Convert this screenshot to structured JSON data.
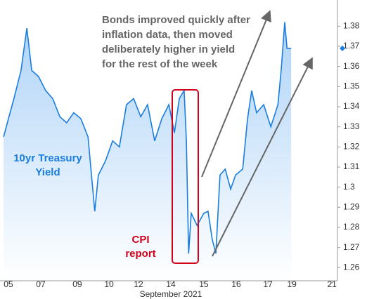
{
  "chart_data": {
    "type": "line",
    "annotation": [
      "Bonds improved quickly after",
      "inflation data, then moved",
      "deliberately higher in yield",
      "for the rest of the week"
    ],
    "series_label": [
      "10yr Treasury",
      "Yield"
    ],
    "event_label": [
      "CPI",
      "report"
    ],
    "xlabel": "September 2021",
    "x": [
      -0.15,
      0,
      0.17,
      0.39,
      0.57,
      0.72,
      0.93,
      1.15,
      1.37,
      1.59,
      1.8,
      2.02,
      2.24,
      2.46,
      2.67,
      2.78,
      3,
      3.22,
      3.43,
      3.65,
      3.87,
      4.09,
      4.3,
      4.52,
      4.74,
      4.96,
      5.13,
      5.28,
      5.43,
      5.5,
      5.57,
      5.65,
      5.83,
      6.04,
      6.17,
      6.3,
      6.41,
      6.54,
      6.7,
      6.87,
      7.02,
      7.24,
      7.39,
      7.52,
      7.67,
      7.89,
      8.11,
      8.33,
      8.43,
      8.54,
      8.61,
      8.74
    ],
    "series": [
      {
        "name": "10yr Treasury Yield",
        "color": "#1a7de0",
        "values": [
          1.325,
          1.334,
          1.344,
          1.358,
          1.379,
          1.358,
          1.355,
          1.348,
          1.344,
          1.335,
          1.332,
          1.337,
          1.334,
          1.325,
          1.288,
          1.306,
          1.313,
          1.323,
          1.32,
          1.341,
          1.344,
          1.335,
          1.341,
          1.323,
          1.334,
          1.341,
          1.327,
          1.344,
          1.348,
          1.323,
          1.267,
          1.287,
          1.281,
          1.287,
          1.288,
          1.274,
          1.267,
          1.306,
          1.309,
          1.299,
          1.306,
          1.309,
          1.334,
          1.348,
          1.337,
          1.341,
          1.33,
          1.341,
          1.358,
          1.382,
          1.369,
          1.369
        ]
      }
    ],
    "xlim": [
      -0.26,
      10.17
    ],
    "xticks": [
      {
        "value": 0,
        "label": "05"
      },
      {
        "value": 1,
        "label": "07"
      },
      {
        "value": 2.13,
        "label": "09"
      },
      {
        "value": 3.11,
        "label": "10"
      },
      {
        "value": 4.02,
        "label": "12"
      },
      {
        "value": 5.02,
        "label": "14"
      },
      {
        "value": 6.04,
        "label": "15"
      },
      {
        "value": 7.04,
        "label": "16"
      },
      {
        "value": 8.02,
        "label": "17"
      },
      {
        "value": 8.76,
        "label": "19"
      },
      {
        "value": 10,
        "label": "21"
      }
    ],
    "ylim": [
      1.2535,
      1.393
    ],
    "yticks": [
      1.26,
      1.27,
      1.28,
      1.29,
      1.3,
      1.31,
      1.32,
      1.33,
      1.34,
      1.35,
      1.36,
      1.37,
      1.38
    ]
  }
}
